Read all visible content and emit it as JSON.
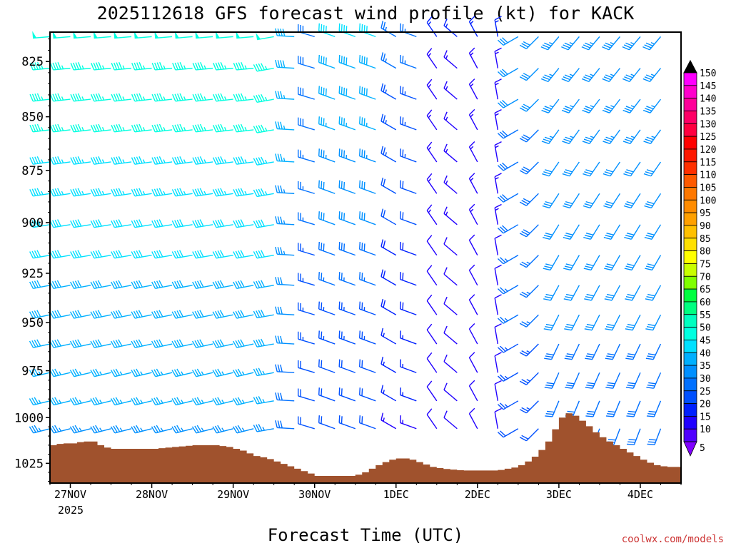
{
  "chart_data": {
    "type": "wind-barb-profile",
    "title": "2025112618 GFS forecast wind profile (kt) for KACK",
    "xlabel": "Forecast Time (UTC)",
    "ylabel": "",
    "credit": "coolwx.com/models",
    "x_start_label_year": "2025",
    "x_hours_range": [
      0,
      186
    ],
    "y_range_hpa": [
      1036,
      812
    ],
    "y_ticks": [
      825,
      850,
      875,
      900,
      925,
      950,
      975,
      1000,
      1025
    ],
    "x_ticks": [
      {
        "label": "27NOV",
        "hour": 6
      },
      {
        "label": "28NOV",
        "hour": 30
      },
      {
        "label": "29NOV",
        "hour": 54
      },
      {
        "label": "30NOV",
        "hour": 78
      },
      {
        "label": "1DEC",
        "hour": 102
      },
      {
        "label": "2DEC",
        "hour": 126
      },
      {
        "label": "3DEC",
        "hour": 150
      },
      {
        "label": "4DEC",
        "hour": 174
      }
    ],
    "barb_levels_hpa": [
      814,
      828,
      842,
      856,
      871,
      886,
      901,
      916,
      931,
      946,
      961,
      976,
      991,
      1006
    ],
    "barb_interval_hours": 6,
    "speed_colorbar": {
      "levels": [
        150,
        145,
        140,
        135,
        130,
        125,
        120,
        115,
        110,
        105,
        100,
        95,
        90,
        85,
        80,
        75,
        70,
        65,
        60,
        55,
        50,
        45,
        40,
        35,
        30,
        25,
        20,
        15,
        10,
        5
      ],
      "colors": [
        "#ff00ff",
        "#ff00cc",
        "#ff0099",
        "#ff0066",
        "#ff0040",
        "#ff0000",
        "#ff1800",
        "#ff3000",
        "#ff5a00",
        "#ff7800",
        "#ff8c00",
        "#ffa000",
        "#ffc000",
        "#ffe000",
        "#ffff00",
        "#c8ff00",
        "#80ff00",
        "#00ff40",
        "#00ff80",
        "#00ffc0",
        "#00ffe0",
        "#00e0ff",
        "#00b0ff",
        "#0090ff",
        "#0070ff",
        "#0050ff",
        "#0020ff",
        "#2000ff",
        "#5000ff",
        "#8000ff"
      ]
    },
    "surface_pressure_hpa": [
      {
        "hour": 0,
        "p": 1015
      },
      {
        "hour": 3,
        "p": 1014
      },
      {
        "hour": 6,
        "p": 1014
      },
      {
        "hour": 9,
        "p": 1013
      },
      {
        "hour": 12,
        "p": 1013
      },
      {
        "hour": 15,
        "p": 1016
      },
      {
        "hour": 18,
        "p": 1017
      },
      {
        "hour": 21,
        "p": 1017
      },
      {
        "hour": 24,
        "p": 1017
      },
      {
        "hour": 30,
        "p": 1017
      },
      {
        "hour": 36,
        "p": 1016
      },
      {
        "hour": 42,
        "p": 1015
      },
      {
        "hour": 48,
        "p": 1015
      },
      {
        "hour": 52,
        "p": 1016
      },
      {
        "hour": 56,
        "p": 1018
      },
      {
        "hour": 60,
        "p": 1021
      },
      {
        "hour": 63,
        "p": 1022
      },
      {
        "hour": 66,
        "p": 1024
      },
      {
        "hour": 69,
        "p": 1026
      },
      {
        "hour": 72,
        "p": 1028
      },
      {
        "hour": 75,
        "p": 1030
      },
      {
        "hour": 78,
        "p": 1032
      },
      {
        "hour": 81,
        "p": 1032
      },
      {
        "hour": 84,
        "p": 1032
      },
      {
        "hour": 88,
        "p": 1032
      },
      {
        "hour": 91,
        "p": 1031
      },
      {
        "hour": 94,
        "p": 1028
      },
      {
        "hour": 97,
        "p": 1025
      },
      {
        "hour": 100,
        "p": 1023
      },
      {
        "hour": 103,
        "p": 1022
      },
      {
        "hour": 106,
        "p": 1023
      },
      {
        "hour": 109,
        "p": 1025
      },
      {
        "hour": 112,
        "p": 1027
      },
      {
        "hour": 115,
        "p": 1028
      },
      {
        "hour": 121,
        "p": 1029
      },
      {
        "hour": 127,
        "p": 1029
      },
      {
        "hour": 131,
        "p": 1029
      },
      {
        "hour": 134,
        "p": 1028
      },
      {
        "hour": 137,
        "p": 1027
      },
      {
        "hour": 140,
        "p": 1024
      },
      {
        "hour": 143,
        "p": 1020
      },
      {
        "hour": 146,
        "p": 1013
      },
      {
        "hour": 149,
        "p": 1003
      },
      {
        "hour": 151,
        "p": 997
      },
      {
        "hour": 154,
        "p": 999
      },
      {
        "hour": 157,
        "p": 1003
      },
      {
        "hour": 160,
        "p": 1008
      },
      {
        "hour": 163,
        "p": 1012
      },
      {
        "hour": 166,
        "p": 1015
      },
      {
        "hour": 169,
        "p": 1018
      },
      {
        "hour": 172,
        "p": 1021
      },
      {
        "hour": 175,
        "p": 1024
      },
      {
        "hour": 178,
        "p": 1026
      },
      {
        "hour": 181,
        "p": 1027
      },
      {
        "hour": 186,
        "p": 1027
      }
    ],
    "ground_color": "#a0522d"
  }
}
